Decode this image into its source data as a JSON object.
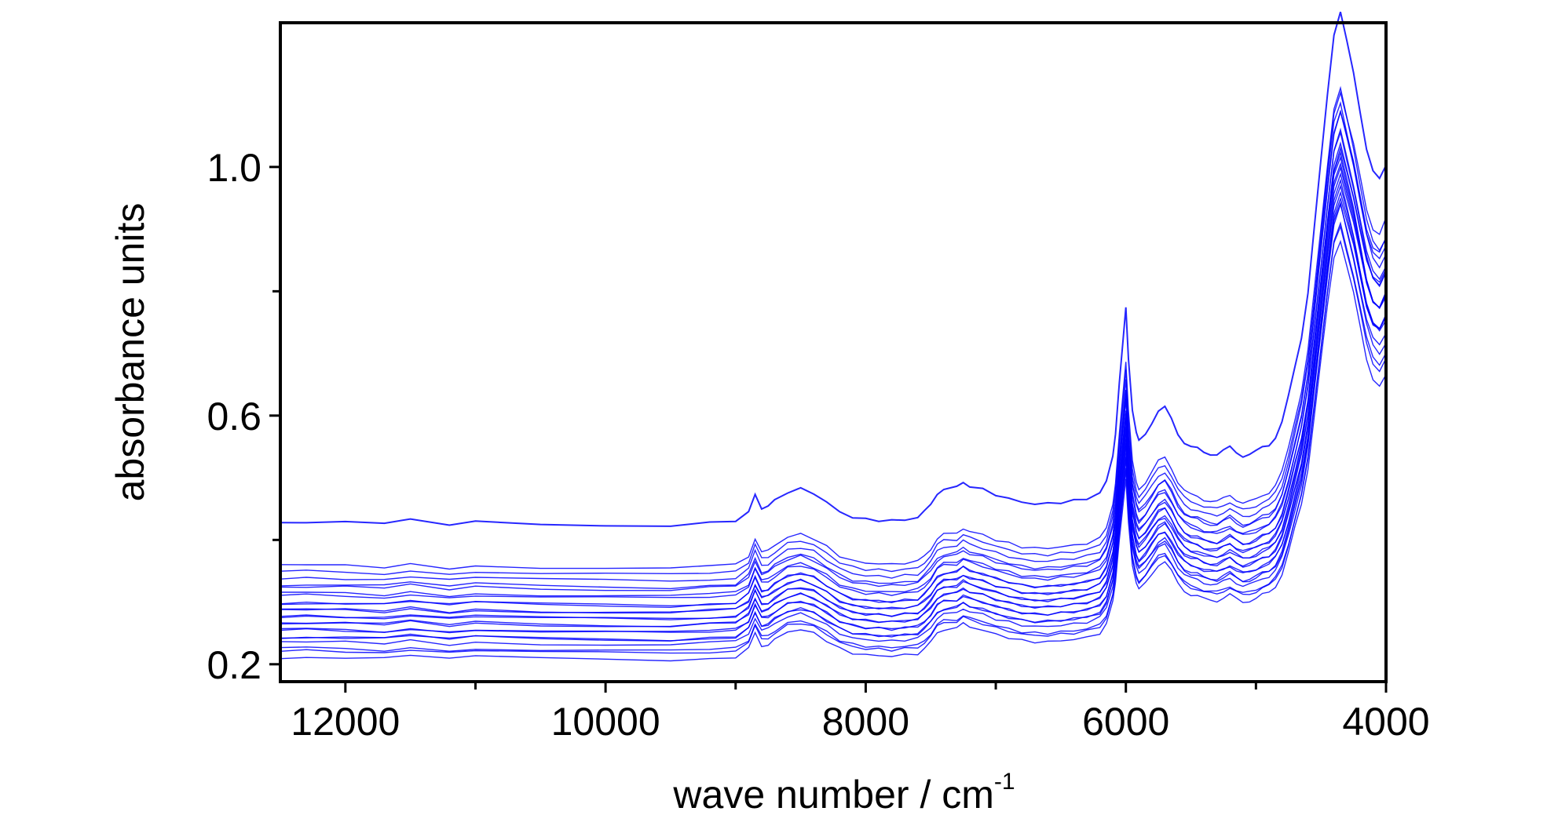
{
  "chart_data": {
    "type": "line",
    "xlabel": "wave number / cm",
    "xlabel_superscript": "-1",
    "ylabel": "absorbance units",
    "xlim": [
      12500,
      4000
    ],
    "ylim": [
      0.172,
      1.232
    ],
    "x_reversed": true,
    "x_ticks": [
      12000,
      10000,
      8000,
      6000,
      4000
    ],
    "x_tick_labels": [
      "12000",
      "10000",
      "8000",
      "6000",
      "4000"
    ],
    "x_minor_ticks": [
      11000,
      9000,
      7000,
      5000
    ],
    "y_ticks": [
      0.2,
      0.6,
      1.0
    ],
    "y_tick_labels": [
      "0.2",
      "0.6",
      "1.0"
    ],
    "y_minor_ticks": [
      0.4,
      0.8
    ],
    "grid": false,
    "legend": "none",
    "line_color": "#0000ff",
    "base_spectrum": {
      "x": [
        12500,
        12300,
        12000,
        11700,
        11500,
        11200,
        11000,
        10500,
        10000,
        9500,
        9200,
        9000,
        8900,
        8850,
        8800,
        8750,
        8700,
        8600,
        8500,
        8400,
        8300,
        8200,
        8100,
        8000,
        7900,
        7800,
        7700,
        7600,
        7550,
        7500,
        7450,
        7400,
        7300,
        7250,
        7200,
        7100,
        7000,
        6900,
        6800,
        6700,
        6600,
        6500,
        6400,
        6300,
        6200,
        6150,
        6100,
        6080,
        6050,
        6020,
        6000,
        5980,
        5950,
        5920,
        5900,
        5850,
        5800,
        5750,
        5700,
        5650,
        5600,
        5550,
        5500,
        5450,
        5400,
        5350,
        5300,
        5250,
        5200,
        5150,
        5100,
        5050,
        5000,
        4950,
        4900,
        4850,
        4800,
        4750,
        4700,
        4650,
        4600,
        4550,
        4500,
        4450,
        4400,
        4350,
        4300,
        4250,
        4200,
        4150,
        4100,
        4050,
        4000
      ],
      "y": [
        0.211,
        0.212,
        0.211,
        0.209,
        0.214,
        0.208,
        0.212,
        0.209,
        0.208,
        0.207,
        0.21,
        0.212,
        0.225,
        0.25,
        0.23,
        0.232,
        0.24,
        0.252,
        0.256,
        0.25,
        0.238,
        0.225,
        0.218,
        0.215,
        0.214,
        0.213,
        0.215,
        0.217,
        0.225,
        0.235,
        0.25,
        0.256,
        0.258,
        0.265,
        0.26,
        0.255,
        0.248,
        0.243,
        0.238,
        0.236,
        0.236,
        0.238,
        0.24,
        0.243,
        0.25,
        0.265,
        0.3,
        0.33,
        0.4,
        0.46,
        0.5,
        0.43,
        0.36,
        0.33,
        0.32,
        0.33,
        0.345,
        0.36,
        0.365,
        0.35,
        0.33,
        0.318,
        0.312,
        0.31,
        0.305,
        0.303,
        0.302,
        0.307,
        0.312,
        0.305,
        0.3,
        0.302,
        0.306,
        0.312,
        0.315,
        0.325,
        0.345,
        0.38,
        0.42,
        0.46,
        0.52,
        0.61,
        0.7,
        0.79,
        0.87,
        0.9,
        0.86,
        0.82,
        0.77,
        0.72,
        0.69,
        0.68,
        0.7
      ]
    },
    "series": [
      {
        "offset": 0.0,
        "scale": 1.0
      },
      {
        "offset": 0.008,
        "scale": 1.01
      },
      {
        "offset": 0.014,
        "scale": 1.0
      },
      {
        "offset": 0.02,
        "scale": 1.02
      },
      {
        "offset": 0.026,
        "scale": 1.03
      },
      {
        "offset": 0.03,
        "scale": 1.01
      },
      {
        "offset": 0.035,
        "scale": 1.04
      },
      {
        "offset": 0.04,
        "scale": 1.02
      },
      {
        "offset": 0.044,
        "scale": 1.05
      },
      {
        "offset": 0.049,
        "scale": 1.03
      },
      {
        "offset": 0.053,
        "scale": 1.06
      },
      {
        "offset": 0.057,
        "scale": 1.04
      },
      {
        "offset": 0.061,
        "scale": 1.07
      },
      {
        "offset": 0.066,
        "scale": 1.05
      },
      {
        "offset": 0.07,
        "scale": 1.08
      },
      {
        "offset": 0.075,
        "scale": 1.06
      },
      {
        "offset": 0.08,
        "scale": 1.09
      },
      {
        "offset": 0.086,
        "scale": 1.08
      },
      {
        "offset": 0.092,
        "scale": 1.1
      },
      {
        "offset": 0.098,
        "scale": 1.09
      },
      {
        "offset": 0.104,
        "scale": 1.11
      },
      {
        "offset": 0.112,
        "scale": 1.12
      },
      {
        "offset": 0.12,
        "scale": 1.13
      },
      {
        "offset": 0.175,
        "scale": 1.2
      }
    ]
  }
}
